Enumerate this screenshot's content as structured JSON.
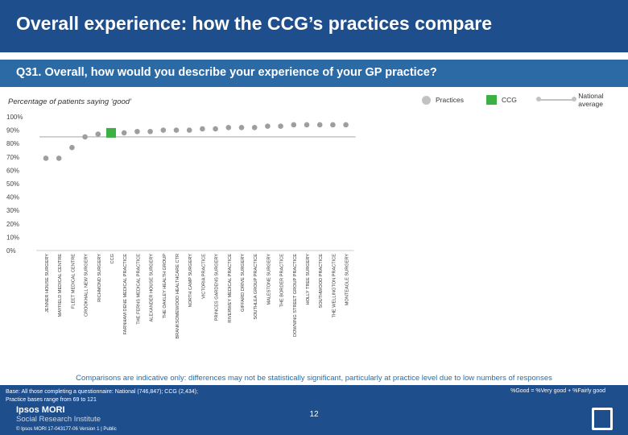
{
  "header": {
    "title": "Overall experience: how the CCG’s practices compare"
  },
  "question": "Q31. Overall, how would you describe your experience of your GP practice?",
  "subtitle": "Percentage of patients saying ‘good’",
  "legend": {
    "practices": "Practices",
    "ccg": "CCG",
    "national": "National average"
  },
  "chart_data": {
    "type": "scatter",
    "ylabel": "Percentage of patients saying ‘good’",
    "ylim": [
      0,
      100
    ],
    "yticks": [
      "0%",
      "10%",
      "20%",
      "30%",
      "40%",
      "50%",
      "60%",
      "70%",
      "80%",
      "90%",
      "100%"
    ],
    "categories": [
      "JENNER HOUSE SURGERY",
      "MAYFIELD MEDICAL CENTRE",
      "FLEET MEDICAL CENTRE",
      "CROOKHALL NEW SURGERY",
      "RICHMOND SURGERY",
      "CCG",
      "FARNHAM DENE MEDICAL PRACTICE",
      "THE FERNS MEDICAL PRACTICE",
      "ALEXANDER HOUSE SURGERY",
      "THE OAKLEY HEALTH GROUP",
      "BRANKSOMEWOOD HEALTHCARE CTR",
      "NORTH CAMP SURGERY",
      "VICTORIA PRACTICE",
      "PRINCES GARDENS SURGERY",
      "RIVERWEY MEDICAL PRACTICE",
      "GIFFARD DRIVE SURGERY",
      "SOUTHLEA GROUP PRACTICE",
      "MALESTONE SURGERY",
      "THE BORDER PRACTICE",
      "DOWNING STREET GROUP PRACTICE",
      "HOLLY TREE SURGERY",
      "SOUTHWOOD PRACTICE",
      "THE WELLINGTON PRACTICE",
      "MONTEAGLE SURGERY"
    ],
    "values": [
      69,
      69,
      77,
      85,
      87,
      88,
      88,
      89,
      89,
      90,
      90,
      90,
      91,
      91,
      92,
      92,
      92,
      93,
      93,
      94,
      94,
      94,
      94,
      94
    ],
    "ccg_index": 5,
    "national_average": 85
  },
  "note": "Comparisons are indicative only: differences may not be statistically significant, particularly at practice level due to low numbers of responses",
  "footer": {
    "base_line1": "Base: All those completing a questionnaire: National (746,847); CCG (2,434);",
    "base_line2": "Practice bases range from 69 to 121",
    "definition": "%Good = %Very good + %Fairly good",
    "logo_line1": "Ipsos MORI",
    "logo_line2": "Social Research Institute",
    "copyright": "© Ipsos MORI     17-043177-06 Version 1 | Public",
    "page_number": "12"
  },
  "colors": {
    "practice": "#c2c2c2",
    "ccg": "#3cb043",
    "national": "#c2c2c2",
    "header": "#1f4e8c"
  }
}
